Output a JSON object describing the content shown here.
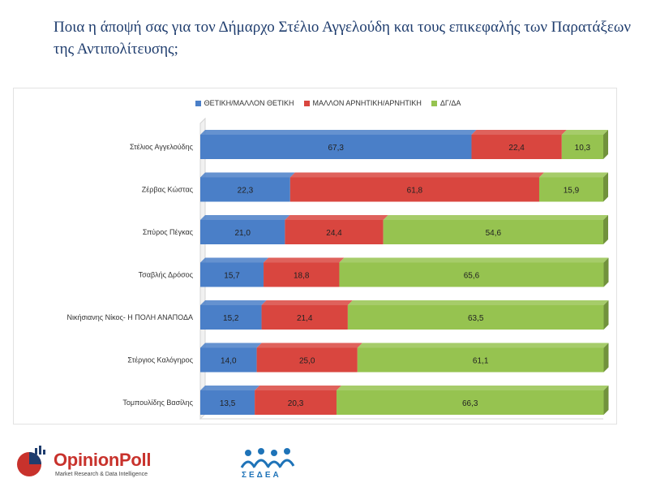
{
  "title": "Ποια η άποψή σας για τον Δήμαρχο Στέλιο Αγγελούδη και τους επικεφαλής των Παρατάξεων της Αντιπολίτευσης;",
  "chart_data": {
    "type": "bar",
    "orientation": "horizontal",
    "stacked": true,
    "categories": [
      "Στέλιος Αγγελούδης",
      "Ζέρβας Κώστας",
      "Σπύρος Πέγκας",
      "Τσαβλής Δρόσος",
      "Νικήσιανης Νίκος- Η ΠΟΛΗ ΑΝΑΠΟΔΑ",
      "Στέργιος Καλόγηρος",
      "Τομπουλίδης Βασίλης"
    ],
    "series": [
      {
        "name": "ΘΕΤΙΚΗ/ΜΑΛΛΟΝ ΘΕΤΙΚΗ",
        "color": "#4a7fc8",
        "values": [
          67.3,
          22.3,
          21.0,
          15.7,
          15.2,
          14.0,
          13.5
        ],
        "labels": [
          "67,3",
          "22,3",
          "21,0",
          "15,7",
          "15,2",
          "14,0",
          "13,5"
        ]
      },
      {
        "name": "ΜΑΛΛΟΝ ΑΡΝΗΤΙΚΗ/ΑΡΝΗΤΙΚΗ",
        "color": "#d9463f",
        "values": [
          22.4,
          61.8,
          24.4,
          18.8,
          21.4,
          25.0,
          20.3
        ],
        "labels": [
          "22,4",
          "61,8",
          "24,4",
          "18,8",
          "21,4",
          "25,0",
          "20,3"
        ]
      },
      {
        "name": "ΔΓ/ΔΑ",
        "color": "#96c350",
        "values": [
          10.3,
          15.9,
          54.6,
          65.6,
          63.5,
          61.1,
          66.3
        ],
        "labels": [
          "10,3",
          "15,9",
          "54,6",
          "65,6",
          "63,5",
          "61,1",
          "66,3"
        ]
      }
    ],
    "xlim": [
      0,
      100
    ],
    "legend_position": "top-center",
    "grid": false
  },
  "footer": {
    "brand": "OpinionPoll",
    "tagline": "Market Research & Data Intelligence",
    "partner": "ΣΕΔΕΑ",
    "brand_color": "#c8322c",
    "partner_color": "#1e73b8"
  }
}
